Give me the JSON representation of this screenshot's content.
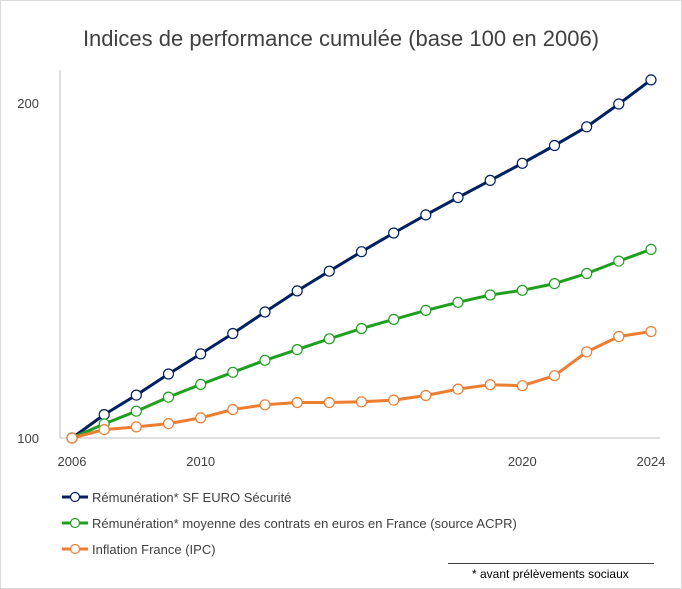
{
  "chart_data": {
    "type": "line",
    "title": "Indices de performance cumulée (base 100 en 2006)",
    "x": [
      2006,
      2007,
      2008,
      2009,
      2010,
      2011,
      2012,
      2013,
      2014,
      2015,
      2016,
      2017,
      2018,
      2019,
      2020,
      2021,
      2022,
      2023,
      2024
    ],
    "x_ticks": [
      "2006",
      "2010",
      "2020",
      "2024"
    ],
    "y_ticks": [
      "100",
      "200"
    ],
    "ylim": [
      100,
      210
    ],
    "xlabel": "",
    "ylabel": "",
    "grid": false,
    "legend_position": "bottom-left",
    "series": [
      {
        "name": "Rémunération* SF EURO Sécurité",
        "color": "#002060",
        "values": [
          100,
          107,
          112.8,
          119.1,
          125.1,
          131.2,
          137.6,
          143.9,
          149.8,
          155.6,
          161.2,
          166.6,
          171.8,
          176.9,
          182,
          187.3,
          192.9,
          199.7,
          206.9
        ]
      },
      {
        "name": "Rémunération* moyenne des contrats en euros en France (source ACPR)",
        "color": "#1EA01E",
        "values": [
          100,
          104.2,
          108,
          112.2,
          116,
          119.6,
          123.2,
          126.4,
          129.6,
          132.7,
          135.4,
          138.1,
          140.5,
          142.7,
          144.1,
          146.1,
          149.1,
          152.8,
          156.3
        ]
      },
      {
        "name": "Inflation France (IPC)",
        "color": "#ED7D31",
        "values": [
          100,
          102.5,
          103.3,
          104.3,
          106,
          108.5,
          109.9,
          110.6,
          110.6,
          110.8,
          111.3,
          112.7,
          114.6,
          115.9,
          115.6,
          118.6,
          125.7,
          130.3,
          131.8
        ]
      }
    ]
  },
  "footnote": "* avant prélèvements sociaux"
}
